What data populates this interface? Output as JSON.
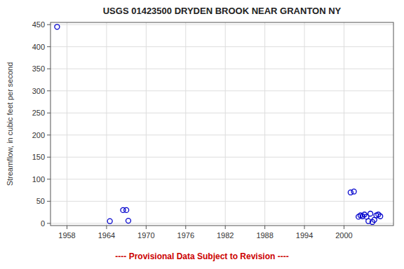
{
  "chart_data": {
    "type": "scatter",
    "title": "USGS 01423500 DRYDEN BROOK NEAR GRANTON NY",
    "ylabel": "Streamflow, in cubic feet per second",
    "x": [
      1956.5,
      1964.5,
      1966.5,
      1967.0,
      1967.3,
      2001.0,
      2001.5,
      2002.2,
      2002.5,
      2002.8,
      2003.1,
      2003.4,
      2003.7,
      2004.0,
      2004.3,
      2004.6,
      2004.9,
      2005.2,
      2005.5
    ],
    "values": [
      445,
      5,
      30,
      30,
      6,
      70,
      72,
      15,
      18,
      16,
      20,
      15,
      5,
      22,
      3,
      8,
      18,
      20,
      16
    ],
    "xlim": [
      1955.5,
      2007.5
    ],
    "ylim": [
      -5,
      455
    ],
    "xticks": [
      1958,
      1964,
      1970,
      1976,
      1982,
      1988,
      1994,
      2000
    ],
    "yticks": [
      0,
      50,
      100,
      150,
      200,
      250,
      300,
      350,
      400,
      450
    ],
    "color": "#0000cc",
    "marker": "open-circle",
    "grid": true,
    "annotations": [
      {
        "text": "---- Provisional Data Subject to Revision ----",
        "color": "#cc0000"
      }
    ]
  }
}
